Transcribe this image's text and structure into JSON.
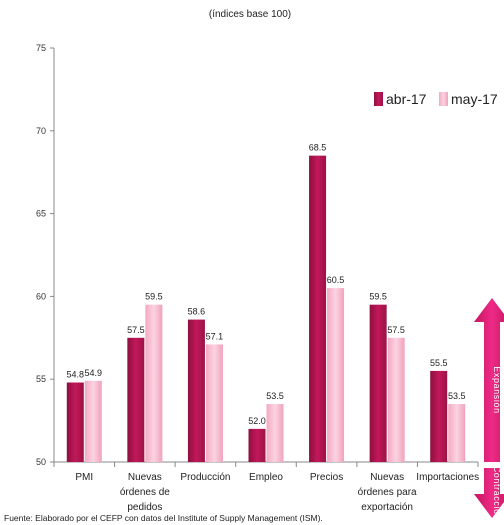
{
  "chart_data": {
    "type": "bar",
    "subtitle": "(índices base 100)",
    "categories": [
      [
        "PMI"
      ],
      [
        "Nuevas",
        "órdenes de",
        "pedidos"
      ],
      [
        "Producción"
      ],
      [
        "Empleo"
      ],
      [
        "Precios"
      ],
      [
        "Nuevas",
        "órdenes para",
        "exportación"
      ],
      [
        "Importaciones"
      ]
    ],
    "series": [
      {
        "name": "abr-17",
        "color": "#c2185b",
        "values": [
          54.8,
          57.5,
          58.6,
          52.0,
          68.5,
          59.5,
          55.5
        ]
      },
      {
        "name": "may-17",
        "color": "#f8bbd0",
        "values": [
          54.9,
          59.5,
          57.1,
          53.5,
          60.5,
          57.5,
          53.5
        ]
      }
    ],
    "ylim": [
      50,
      75
    ],
    "yticks": [
      50,
      55,
      60,
      65,
      70,
      75
    ],
    "legend_position": "top-right",
    "grid": false,
    "side_labels": {
      "upper": "Expansión",
      "lower": "Contracción",
      "color": "#e31c79"
    },
    "source": "Fuente: Elaborado por el CEFP con datos del Institute of Supply Management (ISM)."
  }
}
